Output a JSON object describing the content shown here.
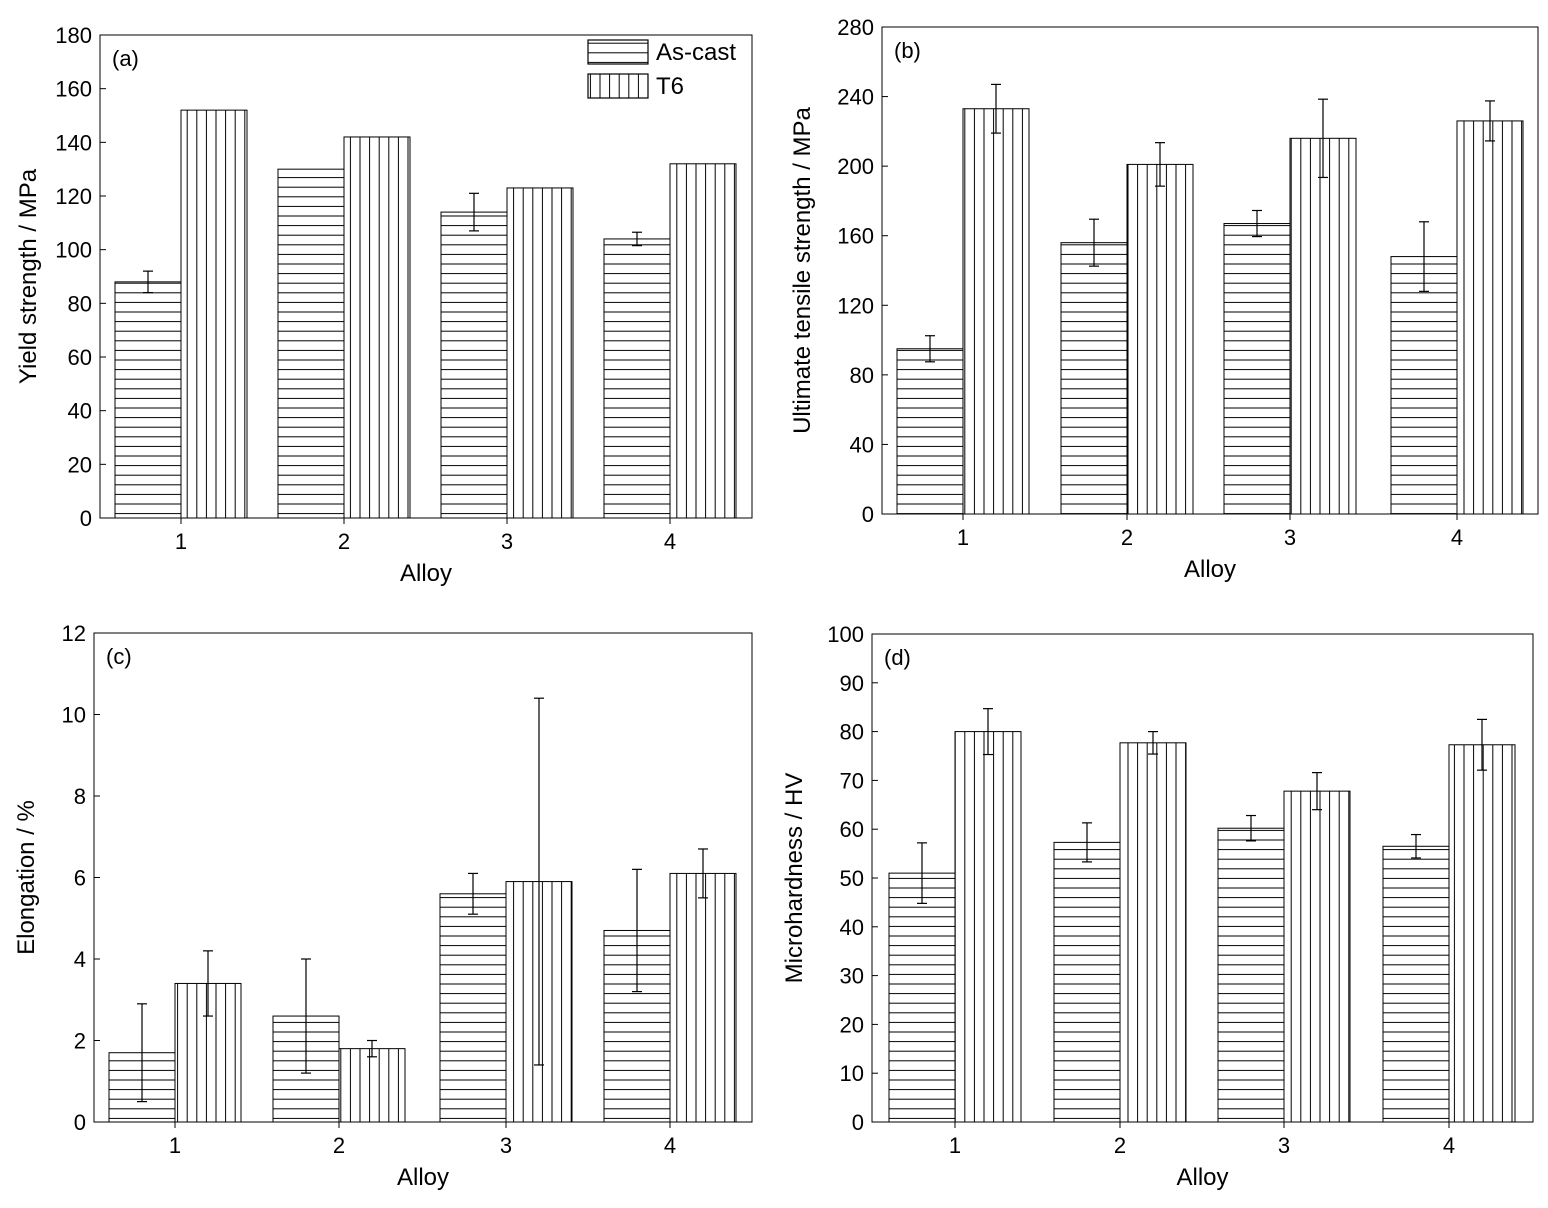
{
  "chart_data": [
    {
      "type": "bar",
      "panel_label": "(a)",
      "xlabel": "Alloy",
      "ylabel": "Yield strength / MPa",
      "ylim": [
        0,
        180
      ],
      "yticks": [
        0,
        20,
        40,
        60,
        80,
        100,
        120,
        140,
        160,
        180
      ],
      "categories": [
        "1",
        "2",
        "3",
        "4"
      ],
      "legend_position": "top-right",
      "series": [
        {
          "name": "As-cast",
          "pattern": "horizontal-lines",
          "values": [
            88,
            130,
            114,
            104
          ],
          "errors": [
            4,
            0,
            7,
            2.5
          ]
        },
        {
          "name": "T6",
          "pattern": "vertical-lines",
          "values": [
            152,
            142,
            123,
            132
          ],
          "errors": [
            0,
            0,
            0,
            0
          ]
        }
      ]
    },
    {
      "type": "bar",
      "panel_label": "(b)",
      "xlabel": "Alloy",
      "ylabel": "Ultimate tensile strength / MPa",
      "ylim": [
        0,
        280
      ],
      "yticks": [
        0,
        40,
        80,
        120,
        160,
        200,
        240,
        280
      ],
      "categories": [
        "1",
        "2",
        "3",
        "4"
      ],
      "series": [
        {
          "name": "As-cast",
          "pattern": "horizontal-lines",
          "values": [
            95,
            156,
            167,
            148
          ],
          "errors": [
            7.5,
            13.5,
            7.5,
            20
          ]
        },
        {
          "name": "T6",
          "pattern": "vertical-lines",
          "values": [
            233,
            201,
            216,
            226
          ],
          "errors": [
            14,
            12.5,
            22.5,
            11.5
          ]
        }
      ]
    },
    {
      "type": "bar",
      "panel_label": "(c)",
      "xlabel": "Alloy",
      "ylabel": "Elongation / %",
      "ylim": [
        0,
        12
      ],
      "yticks": [
        0,
        2,
        4,
        6,
        8,
        10,
        12
      ],
      "categories": [
        "1",
        "2",
        "3",
        "4"
      ],
      "series": [
        {
          "name": "As-cast",
          "pattern": "horizontal-lines",
          "values": [
            1.7,
            2.6,
            5.6,
            4.7
          ],
          "errors": [
            1.2,
            1.4,
            0.5,
            1.5
          ]
        },
        {
          "name": "T6",
          "pattern": "vertical-lines",
          "values": [
            3.4,
            1.8,
            5.9,
            6.1
          ],
          "errors": [
            0.8,
            0.2,
            4.5,
            0.6
          ]
        }
      ]
    },
    {
      "type": "bar",
      "panel_label": "(d)",
      "xlabel": "Alloy",
      "ylabel": "Microhardness / HV",
      "ylim": [
        0,
        100
      ],
      "yticks": [
        0,
        10,
        20,
        30,
        40,
        50,
        60,
        70,
        80,
        90,
        100
      ],
      "categories": [
        "1",
        "2",
        "3",
        "4"
      ],
      "series": [
        {
          "name": "As-cast",
          "pattern": "horizontal-lines",
          "values": [
            51,
            57.3,
            60.2,
            56.5
          ],
          "errors": [
            6.2,
            4,
            2.6,
            2.4
          ]
        },
        {
          "name": "T6",
          "pattern": "vertical-lines",
          "values": [
            80,
            77.7,
            67.8,
            77.3
          ],
          "errors": [
            4.7,
            2.3,
            3.8,
            5.2
          ]
        }
      ]
    }
  ]
}
